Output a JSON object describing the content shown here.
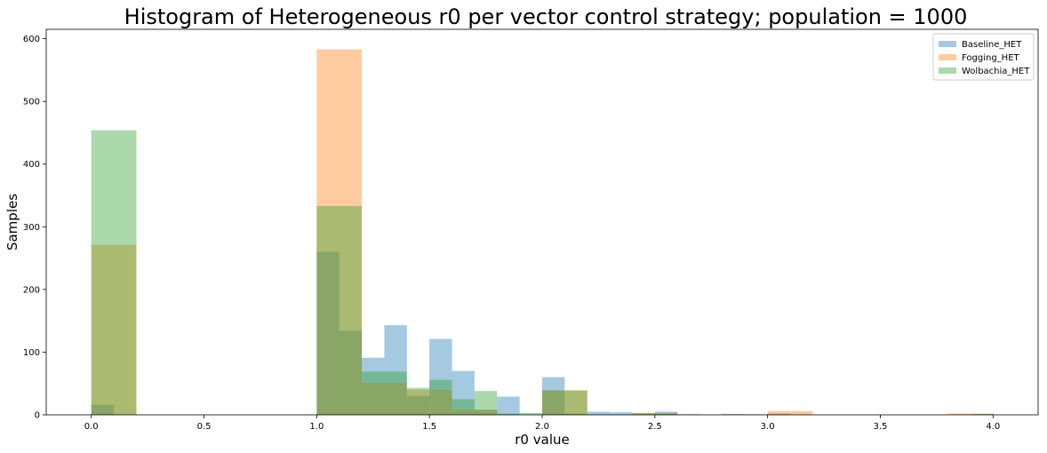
{
  "chart_data": {
    "type": "bar",
    "title": "Histogram of Heterogeneous r0 per vector control strategy; population = 1000",
    "xlabel": "r0 value",
    "ylabel": "Samples",
    "xlim": [
      -0.2,
      4.2
    ],
    "ylim": [
      0,
      615
    ],
    "xticks": [
      "0.0",
      "0.5",
      "1.0",
      "1.5",
      "2.0",
      "2.5",
      "3.0",
      "3.5",
      "4.0"
    ],
    "yticks": [
      "0",
      "100",
      "200",
      "300",
      "400",
      "500",
      "600"
    ],
    "legend_position": "top-right",
    "colors": {
      "Baseline_HET": "#1f77b4",
      "Fogging_HET": "#ff7f0e",
      "Wolbachia_HET": "#2ca02c"
    },
    "series": [
      {
        "name": "Baseline_HET",
        "bins": [
          {
            "x0": 0.0,
            "x1": 0.1,
            "y": 16
          },
          {
            "x0": 1.0,
            "x1": 1.1,
            "y": 260
          },
          {
            "x0": 1.1,
            "x1": 1.2,
            "y": 134
          },
          {
            "x0": 1.2,
            "x1": 1.3,
            "y": 91
          },
          {
            "x0": 1.3,
            "x1": 1.4,
            "y": 143
          },
          {
            "x0": 1.4,
            "x1": 1.5,
            "y": 30
          },
          {
            "x0": 1.5,
            "x1": 1.6,
            "y": 121
          },
          {
            "x0": 1.6,
            "x1": 1.7,
            "y": 70
          },
          {
            "x0": 1.7,
            "x1": 1.8,
            "y": 8
          },
          {
            "x0": 1.8,
            "x1": 1.9,
            "y": 29
          },
          {
            "x0": 2.0,
            "x1": 2.1,
            "y": 60
          },
          {
            "x0": 2.1,
            "x1": 2.2,
            "y": 2
          },
          {
            "x0": 2.2,
            "x1": 2.3,
            "y": 5
          },
          {
            "x0": 2.3,
            "x1": 2.4,
            "y": 4
          },
          {
            "x0": 2.4,
            "x1": 2.5,
            "y": 1
          },
          {
            "x0": 2.5,
            "x1": 2.6,
            "y": 5
          },
          {
            "x0": 2.6,
            "x1": 2.7,
            "y": 1
          },
          {
            "x0": 2.8,
            "x1": 2.9,
            "y": 1
          },
          {
            "x0": 3.0,
            "x1": 3.1,
            "y": 2
          },
          {
            "x0": 3.9,
            "x1": 4.0,
            "y": 1
          }
        ]
      },
      {
        "name": "Fogging_HET",
        "bins": [
          {
            "x0": 0.0,
            "x1": 0.2,
            "y": 271
          },
          {
            "x0": 1.0,
            "x1": 1.2,
            "y": 583
          },
          {
            "x0": 1.2,
            "x1": 1.4,
            "y": 51
          },
          {
            "x0": 1.4,
            "x1": 1.6,
            "y": 40
          },
          {
            "x0": 1.6,
            "x1": 1.8,
            "y": 8
          },
          {
            "x0": 1.8,
            "x1": 2.0,
            "y": 0
          },
          {
            "x0": 2.0,
            "x1": 2.2,
            "y": 39
          },
          {
            "x0": 2.4,
            "x1": 2.6,
            "y": 3
          },
          {
            "x0": 3.0,
            "x1": 3.2,
            "y": 6
          },
          {
            "x0": 3.8,
            "x1": 4.0,
            "y": 2
          }
        ]
      },
      {
        "name": "Wolbachia_HET",
        "bins": [
          {
            "x0": 0.0,
            "x1": 0.2,
            "y": 454
          },
          {
            "x0": 1.0,
            "x1": 1.2,
            "y": 333
          },
          {
            "x0": 1.2,
            "x1": 1.4,
            "y": 69
          },
          {
            "x0": 1.4,
            "x1": 1.5,
            "y": 43
          },
          {
            "x0": 1.5,
            "x1": 1.6,
            "y": 56
          },
          {
            "x0": 1.6,
            "x1": 1.7,
            "y": 25
          },
          {
            "x0": 1.7,
            "x1": 1.8,
            "y": 38
          },
          {
            "x0": 1.8,
            "x1": 1.9,
            "y": 2
          },
          {
            "x0": 1.9,
            "x1": 2.0,
            "y": 3
          },
          {
            "x0": 2.0,
            "x1": 2.1,
            "y": 39
          },
          {
            "x0": 2.1,
            "x1": 2.2,
            "y": 39
          },
          {
            "x0": 2.4,
            "x1": 2.5,
            "y": 3
          },
          {
            "x0": 2.5,
            "x1": 2.6,
            "y": 2
          },
          {
            "x0": 2.8,
            "x1": 3.0,
            "y": 1
          },
          {
            "x0": 3.9,
            "x1": 4.0,
            "y": 1
          }
        ]
      }
    ]
  }
}
